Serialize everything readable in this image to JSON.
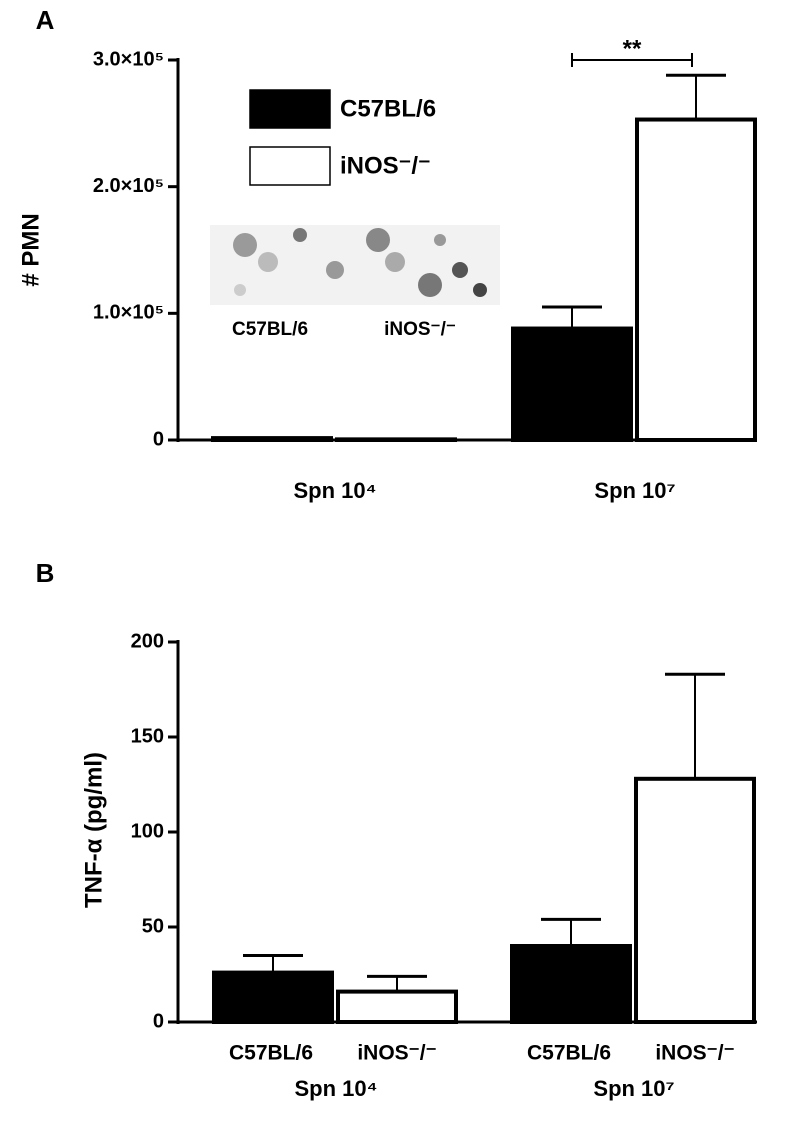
{
  "chart_data": [
    {
      "type": "bar",
      "panel": "A",
      "ylabel": "# PMN",
      "categories": [
        "Spn 10⁴",
        "Spn 10⁷"
      ],
      "series": [
        {
          "name": "C57BL/6",
          "color": "#000000",
          "values": [
            1500,
            88000
          ],
          "errors": [
            0,
            17000
          ]
        },
        {
          "name": "iNOS⁻/⁻",
          "color": "#ffffff",
          "values": [
            500,
            253000
          ],
          "errors": [
            0,
            35000
          ]
        }
      ],
      "ylim": [
        0,
        300000
      ],
      "yticks": [
        0,
        {
          "value": 100000,
          "label": "1.0×10⁵"
        },
        {
          "value": 200000,
          "label": "2.0×10⁵"
        },
        {
          "value": 300000,
          "label": "3.0×10⁵"
        }
      ],
      "legend": "upper left",
      "annotation": "**",
      "inset_labels": [
        "C57BL/6",
        "iNOS⁻/⁻"
      ]
    },
    {
      "type": "bar",
      "panel": "B",
      "ylabel": "TNF-α (pg/ml)",
      "categories": [
        "Spn 10⁴",
        "Spn 10⁷"
      ],
      "series": [
        {
          "name": "C57BL/6",
          "color": "#000000",
          "values": [
            26,
            40
          ],
          "errors": [
            9,
            14
          ]
        },
        {
          "name": "iNOS⁻/⁻",
          "color": "#ffffff",
          "values": [
            16,
            128
          ],
          "errors": [
            8,
            55
          ]
        }
      ],
      "ylim": [
        0,
        200
      ],
      "yticks": [
        0,
        50,
        100,
        150,
        200
      ],
      "bar_labels": true
    }
  ]
}
